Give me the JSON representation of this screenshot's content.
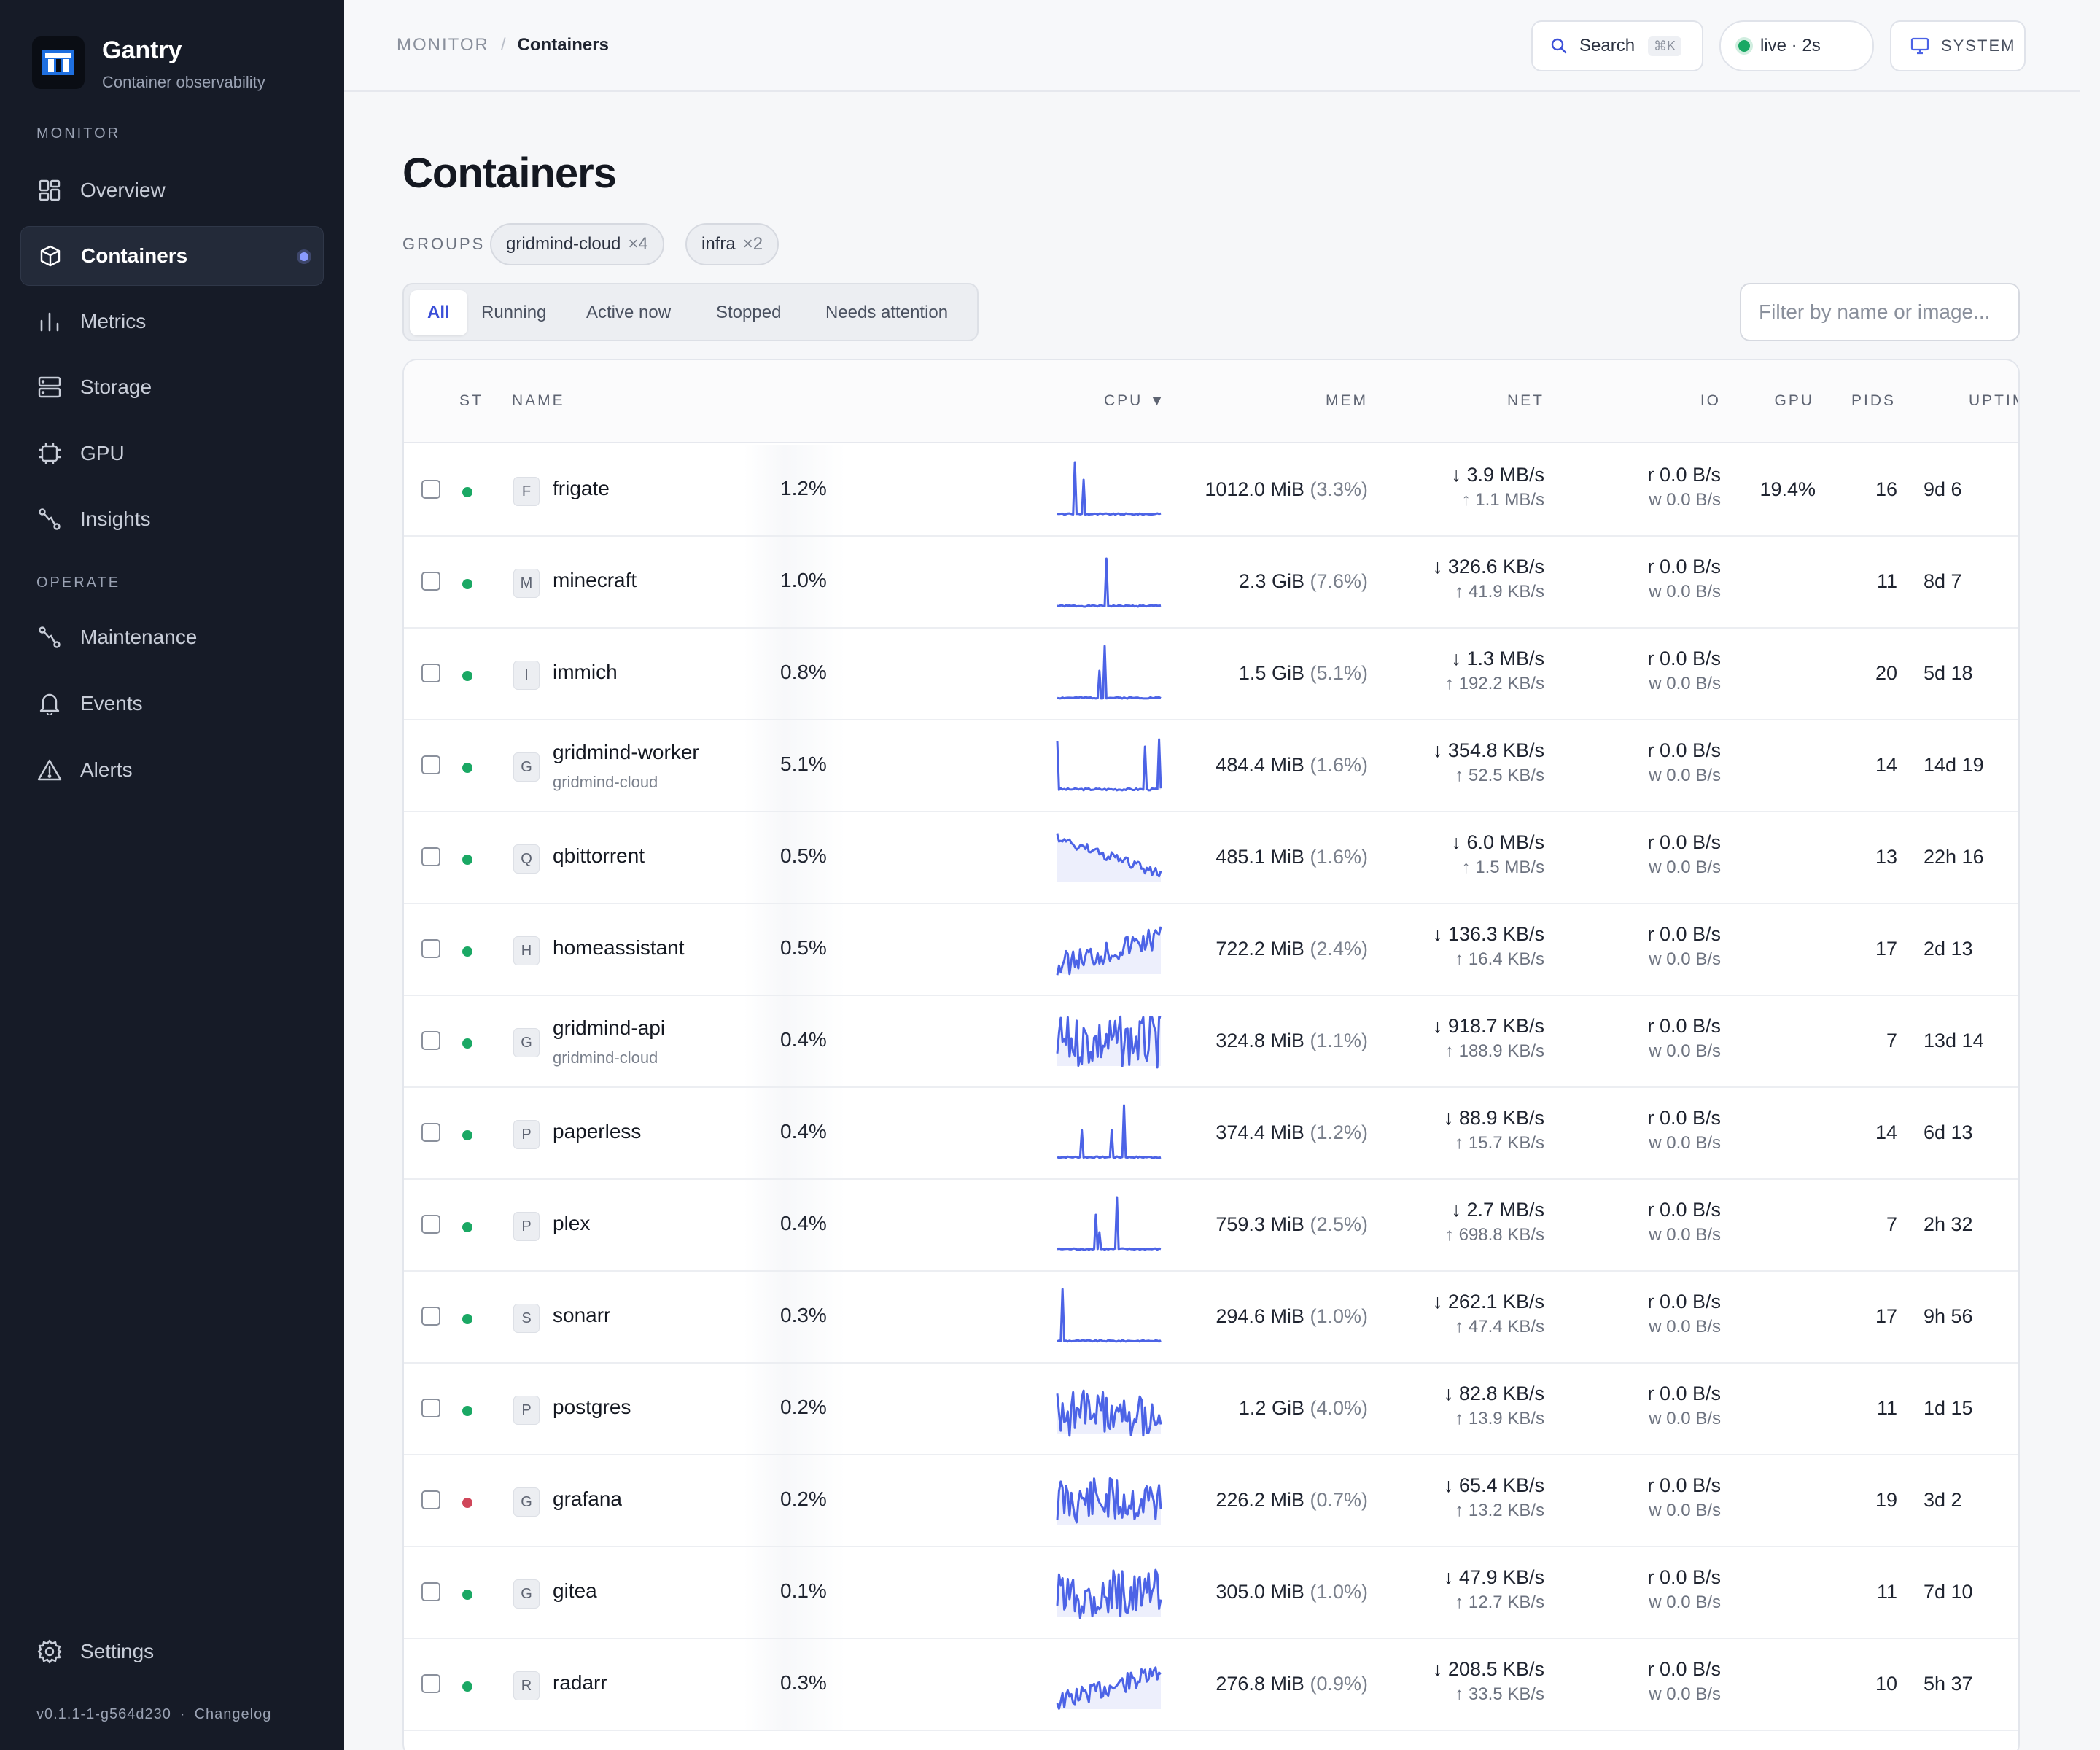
{
  "brand": {
    "name": "Gantry",
    "subtitle": "Container observability"
  },
  "sidebar": {
    "section_monitor": "MONITOR",
    "section_operate": "OPERATE",
    "items": [
      {
        "label": "Overview",
        "icon": "grid-icon"
      },
      {
        "label": "Containers",
        "icon": "cube-icon",
        "active": true
      },
      {
        "label": "Metrics",
        "icon": "bar-chart-icon"
      },
      {
        "label": "Storage",
        "icon": "storage-icon"
      },
      {
        "label": "GPU",
        "icon": "chip-icon"
      },
      {
        "label": "Insights",
        "icon": "insights-icon"
      },
      {
        "label": "Maintenance",
        "icon": "maintenance-icon"
      },
      {
        "label": "Events",
        "icon": "bell-icon"
      },
      {
        "label": "Alerts",
        "icon": "warning-icon"
      }
    ],
    "settings": "Settings",
    "version": "v0.1.1-1-g564d230",
    "changelog": "Changelog"
  },
  "topbar": {
    "crumb_root": "MONITOR",
    "crumb_sep": "/",
    "crumb_current": "Containers",
    "search_label": "Search",
    "search_kbd": "⌘K",
    "live_label": "live · 2s",
    "system_label": "SYSTEM"
  },
  "page": {
    "title": "Containers",
    "groups_label": "GROUPS",
    "groups": [
      {
        "name": "gridmind-cloud",
        "count": "×4"
      },
      {
        "name": "infra",
        "count": "×2"
      }
    ],
    "tabs": [
      "All",
      "Running",
      "Active now",
      "Stopped",
      "Needs attention"
    ],
    "active_tab": "All",
    "filter_placeholder": "Filter by name or image..."
  },
  "table": {
    "headers": {
      "st": "ST",
      "name": "NAME",
      "cpu": "CPU ▼",
      "mem": "MEM",
      "net": "NET",
      "io": "IO",
      "gpu": "GPU",
      "pids": "PIDS",
      "uptime": "UPTIM"
    },
    "rows": [
      {
        "initial": "F",
        "name": "frigate",
        "group": "",
        "status": "running",
        "cpu": "1.2%",
        "spark": "spike1",
        "mem": "1012.0 MiB",
        "mem_pct": "(3.3%)",
        "net_down": "↓ 3.9 MB/s",
        "net_up": "↑ 1.1 MB/s",
        "io_r": "r 0.0 B/s",
        "io_w": "w 0.0 B/s",
        "gpu": "19.4%",
        "pids": "16",
        "uptime": "9d 6"
      },
      {
        "initial": "M",
        "name": "minecraft",
        "group": "",
        "status": "running",
        "cpu": "1.0%",
        "spark": "spike2",
        "mem": "2.3 GiB",
        "mem_pct": "(7.6%)",
        "net_down": "↓ 326.6 KB/s",
        "net_up": "↑ 41.9 KB/s",
        "io_r": "r 0.0 B/s",
        "io_w": "w 0.0 B/s",
        "gpu": "",
        "pids": "11",
        "uptime": "8d 7"
      },
      {
        "initial": "I",
        "name": "immich",
        "group": "",
        "status": "running",
        "cpu": "0.8%",
        "spark": "spike3",
        "mem": "1.5 GiB",
        "mem_pct": "(5.1%)",
        "net_down": "↓ 1.3 MB/s",
        "net_up": "↑ 192.2 KB/s",
        "io_r": "r 0.0 B/s",
        "io_w": "w 0.0 B/s",
        "gpu": "",
        "pids": "20",
        "uptime": "5d 18"
      },
      {
        "initial": "G",
        "name": "gridmind-worker",
        "group": "gridmind-cloud",
        "status": "running",
        "cpu": "5.1%",
        "spark": "box",
        "mem": "484.4 MiB",
        "mem_pct": "(1.6%)",
        "net_down": "↓ 354.8 KB/s",
        "net_up": "↑ 52.5 KB/s",
        "io_r": "r 0.0 B/s",
        "io_w": "w 0.0 B/s",
        "gpu": "",
        "pids": "14",
        "uptime": "14d 19"
      },
      {
        "initial": "Q",
        "name": "qbittorrent",
        "group": "",
        "status": "running",
        "cpu": "0.5%",
        "spark": "decline",
        "mem": "485.1 MiB",
        "mem_pct": "(1.6%)",
        "net_down": "↓ 6.0 MB/s",
        "net_up": "↑ 1.5 MB/s",
        "io_r": "r 0.0 B/s",
        "io_w": "w 0.0 B/s",
        "gpu": "",
        "pids": "13",
        "uptime": "22h 16"
      },
      {
        "initial": "H",
        "name": "homeassistant",
        "group": "",
        "status": "running",
        "cpu": "0.5%",
        "spark": "rise",
        "mem": "722.2 MiB",
        "mem_pct": "(2.4%)",
        "net_down": "↓ 136.3 KB/s",
        "net_up": "↑ 16.4 KB/s",
        "io_r": "r 0.0 B/s",
        "io_w": "w 0.0 B/s",
        "gpu": "",
        "pids": "17",
        "uptime": "2d 13"
      },
      {
        "initial": "G",
        "name": "gridmind-api",
        "group": "gridmind-cloud",
        "status": "running",
        "cpu": "0.4%",
        "spark": "noise",
        "mem": "324.8 MiB",
        "mem_pct": "(1.1%)",
        "net_down": "↓ 918.7 KB/s",
        "net_up": "↑ 188.9 KB/s",
        "io_r": "r 0.0 B/s",
        "io_w": "w 0.0 B/s",
        "gpu": "",
        "pids": "7",
        "uptime": "13d 14"
      },
      {
        "initial": "P",
        "name": "paperless",
        "group": "",
        "status": "running",
        "cpu": "0.4%",
        "spark": "spike4",
        "mem": "374.4 MiB",
        "mem_pct": "(1.2%)",
        "net_down": "↓ 88.9 KB/s",
        "net_up": "↑ 15.7 KB/s",
        "io_r": "r 0.0 B/s",
        "io_w": "w 0.0 B/s",
        "gpu": "",
        "pids": "14",
        "uptime": "6d 13"
      },
      {
        "initial": "P",
        "name": "plex",
        "group": "",
        "status": "running",
        "cpu": "0.4%",
        "spark": "spike5",
        "mem": "759.3 MiB",
        "mem_pct": "(2.5%)",
        "net_down": "↓ 2.7 MB/s",
        "net_up": "↑ 698.8 KB/s",
        "io_r": "r 0.0 B/s",
        "io_w": "w 0.0 B/s",
        "gpu": "",
        "pids": "7",
        "uptime": "2h 32"
      },
      {
        "initial": "S",
        "name": "sonarr",
        "group": "",
        "status": "running",
        "cpu": "0.3%",
        "spark": "spike6",
        "mem": "294.6 MiB",
        "mem_pct": "(1.0%)",
        "net_down": "↓ 262.1 KB/s",
        "net_up": "↑ 47.4 KB/s",
        "io_r": "r 0.0 B/s",
        "io_w": "w 0.0 B/s",
        "gpu": "",
        "pids": "17",
        "uptime": "9h 56"
      },
      {
        "initial": "P",
        "name": "postgres",
        "group": "",
        "status": "running",
        "cpu": "0.2%",
        "spark": "noise2",
        "mem": "1.2 GiB",
        "mem_pct": "(4.0%)",
        "net_down": "↓ 82.8 KB/s",
        "net_up": "↑ 13.9 KB/s",
        "io_r": "r 0.0 B/s",
        "io_w": "w 0.0 B/s",
        "gpu": "",
        "pids": "11",
        "uptime": "1d 15"
      },
      {
        "initial": "G",
        "name": "grafana",
        "group": "",
        "status": "stopped",
        "cpu": "0.2%",
        "spark": "noise3",
        "mem": "226.2 MiB",
        "mem_pct": "(0.7%)",
        "net_down": "↓ 65.4 KB/s",
        "net_up": "↑ 13.2 KB/s",
        "io_r": "r 0.0 B/s",
        "io_w": "w 0.0 B/s",
        "gpu": "",
        "pids": "19",
        "uptime": "3d 2"
      },
      {
        "initial": "G",
        "name": "gitea",
        "group": "",
        "status": "running",
        "cpu": "0.1%",
        "spark": "noise4",
        "mem": "305.0 MiB",
        "mem_pct": "(1.0%)",
        "net_down": "↓ 47.9 KB/s",
        "net_up": "↑ 12.7 KB/s",
        "io_r": "r 0.0 B/s",
        "io_w": "w 0.0 B/s",
        "gpu": "",
        "pids": "11",
        "uptime": "7d 10"
      },
      {
        "initial": "R",
        "name": "radarr",
        "group": "",
        "status": "running",
        "cpu": "0.3%",
        "spark": "rise2",
        "mem": "276.8 MiB",
        "mem_pct": "(0.9%)",
        "net_down": "↓ 208.5 KB/s",
        "net_up": "↑ 33.5 KB/s",
        "io_r": "r 0.0 B/s",
        "io_w": "w 0.0 B/s",
        "gpu": "",
        "pids": "10",
        "uptime": "5h 37"
      }
    ]
  },
  "colors": {
    "accent": "#4c63e6",
    "running": "#1aa864",
    "stopped": "#d0465a",
    "sidebar_bg": "#161b27"
  }
}
